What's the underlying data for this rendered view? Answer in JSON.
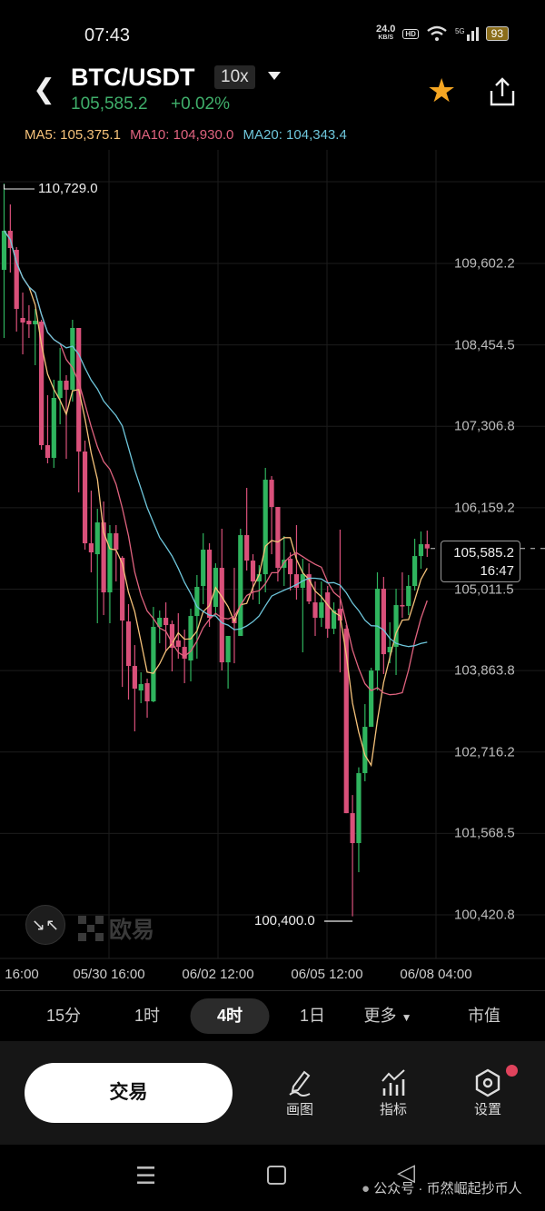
{
  "status_bar": {
    "time": "07:43",
    "net_speed": "24.0",
    "net_unit": "KB/S",
    "hd": "HD",
    "network": "5G",
    "battery": "93"
  },
  "header": {
    "pair": "BTC/USDT",
    "leverage": "10x",
    "last_price": "105,585.2",
    "change": "+0.02%"
  },
  "indicators": {
    "ma5": "MA5: 105,375.1",
    "ma10": "MA10: 104,930.0",
    "ma20": "MA20: 104,343.4"
  },
  "colors": {
    "up": "#2fb45e",
    "down": "#d9507a",
    "ma5": "#f5c27a",
    "ma10": "#e0637f",
    "ma20": "#6ec6db",
    "star": "#f5a623",
    "price_green": "#3fae6a"
  },
  "chart_data": {
    "type": "candlestick",
    "interval": "4时",
    "y_ticks": [
      "109,602.2",
      "108,454.5",
      "107,306.8",
      "106,159.2",
      "105,011.5",
      "103,863.8",
      "102,716.2",
      "101,568.5",
      "100,420.8"
    ],
    "ylim": [
      100420.8,
      109602.2
    ],
    "x_ticks": [
      "16:00",
      "05/30 16:00",
      "06/02 12:00",
      "06/05 12:00",
      "06/08 04:00"
    ],
    "max_label": "110,729.0",
    "min_label": "100,400.0",
    "current_price": "105,585.2",
    "countdown": "16:47",
    "grid": true,
    "ohlc": [
      [
        109512,
        110729,
        108552,
        110063
      ],
      [
        110063,
        110434,
        109474,
        109820
      ],
      [
        109794,
        109833,
        108642,
        108962
      ],
      [
        108834,
        109192,
        108321,
        108770
      ],
      [
        108795,
        109013,
        108552,
        108744
      ],
      [
        108744,
        108962,
        108168,
        108795
      ],
      [
        108782,
        108808,
        106977,
        107041
      ],
      [
        107041,
        107745,
        106785,
        106862
      ],
      [
        106862,
        107963,
        106721,
        107707
      ],
      [
        107707,
        108411,
        107335,
        107950
      ],
      [
        107950,
        108027,
        106849,
        107822
      ],
      [
        107822,
        108808,
        107655,
        108693
      ],
      [
        108693,
        108693,
        106375,
        106951
      ],
      [
        106951,
        107105,
        105568,
        105658
      ],
      [
        105658,
        106400,
        105248,
        105530
      ],
      [
        105504,
        106144,
        104531,
        105952
      ],
      [
        105952,
        106247,
        104646,
        104966
      ],
      [
        104966,
        105914,
        104531,
        105799
      ],
      [
        105799,
        105914,
        105120,
        105568
      ],
      [
        105453,
        105478,
        103634,
        104569
      ],
      [
        104556,
        104800,
        103455,
        103929
      ],
      [
        103929,
        104223,
        103007,
        103609
      ],
      [
        103583,
        103839,
        103404,
        103673
      ],
      [
        103686,
        103750,
        103199,
        103430
      ],
      [
        103430,
        104761,
        103417,
        104480
      ],
      [
        104480,
        104710,
        104249,
        104608
      ],
      [
        104608,
        104825,
        104134,
        104505
      ],
      [
        104518,
        104569,
        103852,
        104185
      ],
      [
        104288,
        104672,
        104031,
        104198
      ],
      [
        104198,
        104441,
        103686,
        104031
      ],
      [
        104006,
        104736,
        103711,
        104633
      ],
      [
        104633,
        105210,
        104031,
        105043
      ],
      [
        105056,
        105799,
        104800,
        105568
      ],
      [
        105568,
        105658,
        104480,
        104608
      ],
      [
        104761,
        105376,
        104646,
        105312
      ],
      [
        105312,
        105863,
        103865,
        103980
      ],
      [
        103980,
        104352,
        103609,
        104352
      ],
      [
        104608,
        105312,
        103967,
        104531
      ],
      [
        104352,
        105863,
        104352,
        105773
      ],
      [
        105773,
        106439,
        105274,
        105414
      ],
      [
        105414,
        105504,
        104864,
        105120
      ],
      [
        105120,
        105350,
        104800,
        105222
      ],
      [
        105222,
        106721,
        104966,
        106554
      ],
      [
        106554,
        106605,
        105504,
        106170
      ],
      [
        106170,
        106170,
        105120,
        105312
      ],
      [
        105312,
        105760,
        105056,
        105427
      ],
      [
        105440,
        105530,
        104992,
        105222
      ],
      [
        105222,
        105914,
        104864,
        105030
      ],
      [
        105030,
        105440,
        104121,
        105222
      ],
      [
        105222,
        105376,
        104800,
        104838
      ],
      [
        104825,
        105120,
        104352,
        104608
      ],
      [
        104608,
        105120,
        104480,
        104825
      ],
      [
        104966,
        105056,
        104326,
        104454
      ],
      [
        104454,
        104825,
        104377,
        104710
      ],
      [
        104736,
        105850,
        103839,
        104569
      ],
      [
        104454,
        104505,
        101854,
        101854
      ],
      [
        101854,
        102110,
        100400,
        101432
      ],
      [
        101432,
        102500,
        101022,
        102418
      ],
      [
        102418,
        103391,
        102303,
        103071
      ],
      [
        103071,
        103903,
        103071,
        103865
      ],
      [
        103865,
        105248,
        103583,
        105017
      ],
      [
        105017,
        105184,
        103814,
        104095
      ],
      [
        104121,
        104544,
        103967,
        104198
      ],
      [
        104198,
        105017,
        103801,
        104787
      ],
      [
        104787,
        105248,
        104608,
        104774
      ],
      [
        104774,
        105210,
        104646,
        105056
      ],
      [
        105056,
        105722,
        104992,
        105478
      ],
      [
        105478,
        105824,
        105299,
        105645
      ],
      [
        105645,
        105837,
        105466,
        105585.2
      ]
    ]
  },
  "watermark": {
    "brand": "欧易"
  },
  "timeframes": [
    {
      "label": "15分"
    },
    {
      "label": "1时"
    },
    {
      "label": "4时",
      "active": true
    },
    {
      "label": "1日"
    },
    {
      "label": "更多"
    },
    {
      "label": "市值"
    }
  ],
  "bottom_bar": {
    "trade": "交易",
    "draw": "画图",
    "indicators": "指标",
    "settings": "设置"
  },
  "overlay_text": "公众号 · 币然崛起抄币人"
}
